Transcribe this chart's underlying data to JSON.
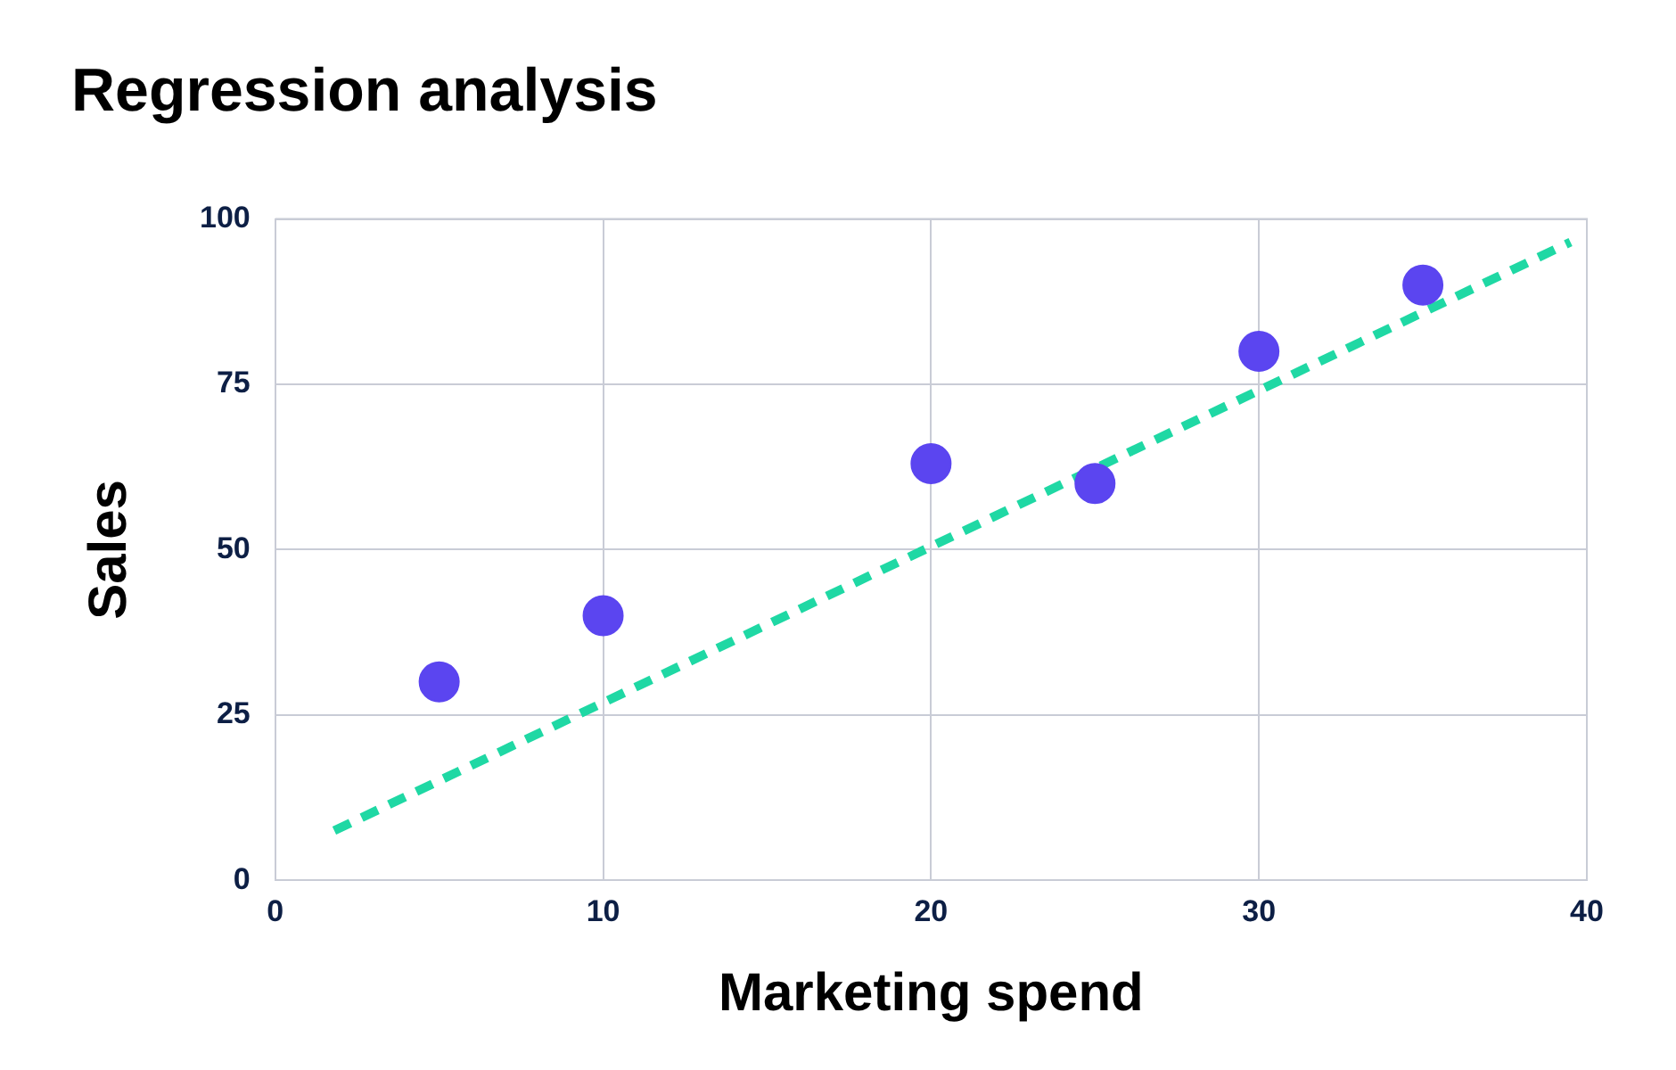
{
  "chart_data": {
    "type": "scatter",
    "title": "Regression analysis",
    "xlabel": "Marketing spend",
    "ylabel": "Sales",
    "x": [
      5,
      10,
      20,
      25,
      30,
      35
    ],
    "xlim": [
      0,
      40
    ],
    "xticks": [
      0,
      10,
      20,
      30,
      40
    ],
    "ylim": [
      0,
      100
    ],
    "yticks": [
      0,
      25,
      50,
      75,
      100
    ],
    "grid": true,
    "legend": false,
    "marker": "circle",
    "series": [
      {
        "color": "#5b45f0",
        "values": [
          30,
          40,
          63,
          60,
          80,
          90
        ]
      },
      {
        "type": "line",
        "color": "#1fd8a4",
        "x": [
          1.8,
          39.5
        ],
        "values": [
          7.5,
          96.5
        ],
        "line_style": "dashed",
        "marker": "none"
      }
    ]
  }
}
